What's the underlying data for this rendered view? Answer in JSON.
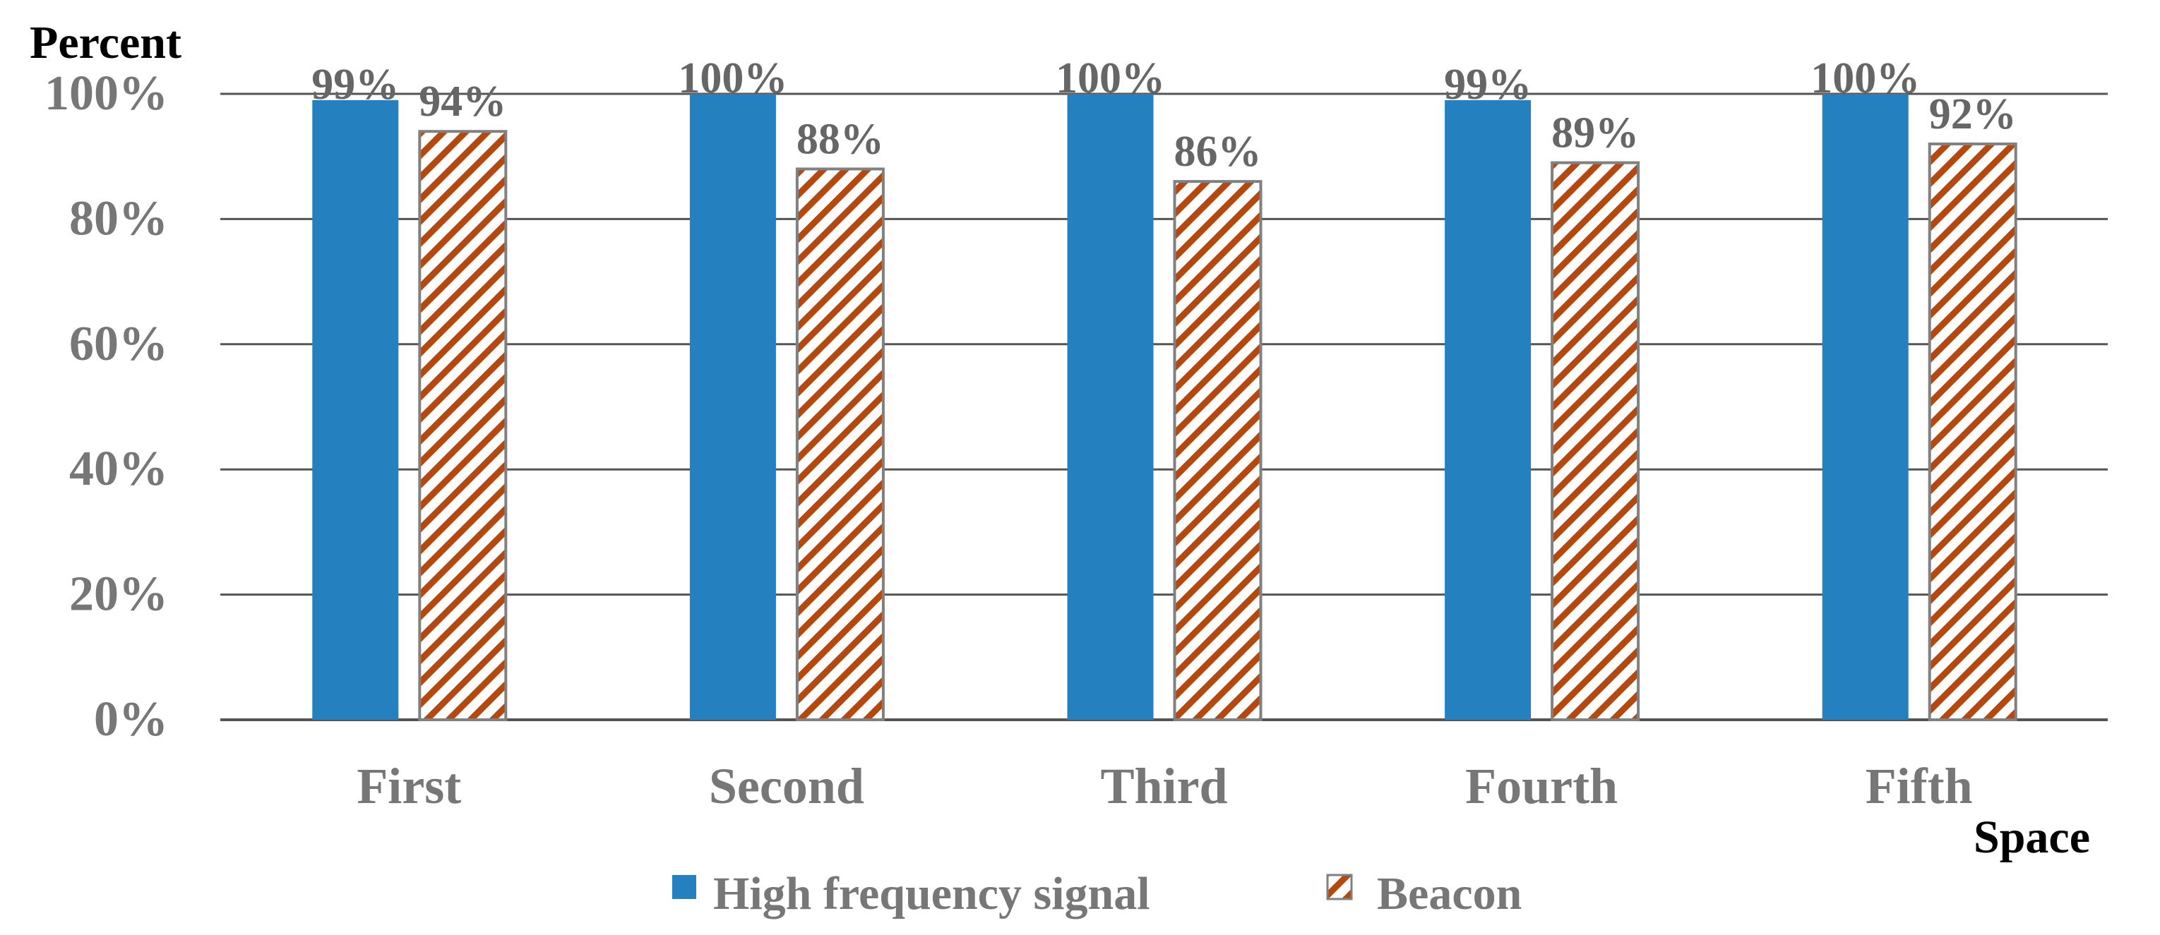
{
  "chart_data": {
    "type": "bar",
    "title": "",
    "ylabel": "Percent",
    "xlabel": "Space",
    "categories": [
      "First",
      "Second",
      "Third",
      "Fourth",
      "Fifth"
    ],
    "series": [
      {
        "name": "High frequency signal",
        "values": [
          99,
          100,
          100,
          99,
          100
        ],
        "labels": [
          "99%",
          "100%",
          "100%",
          "99%",
          "100%"
        ],
        "color": "#2580BF",
        "fill": "solid"
      },
      {
        "name": "Beacon",
        "values": [
          94,
          88,
          86,
          89,
          92
        ],
        "labels": [
          "94%",
          "88%",
          "86%",
          "89%",
          "92%"
        ],
        "color": "#B5480F",
        "fill": "diagonal-stripes"
      }
    ],
    "yticks": [
      "0%",
      "20%",
      "40%",
      "60%",
      "80%",
      "100%"
    ],
    "ylim": [
      0,
      100
    ],
    "grid": true,
    "legend_position": "bottom-center"
  },
  "colors": {
    "axis_text": "#777777",
    "label_text": "#666666",
    "gridline": "#555555",
    "bar_outline": "#808080",
    "title_text": "#000000"
  }
}
